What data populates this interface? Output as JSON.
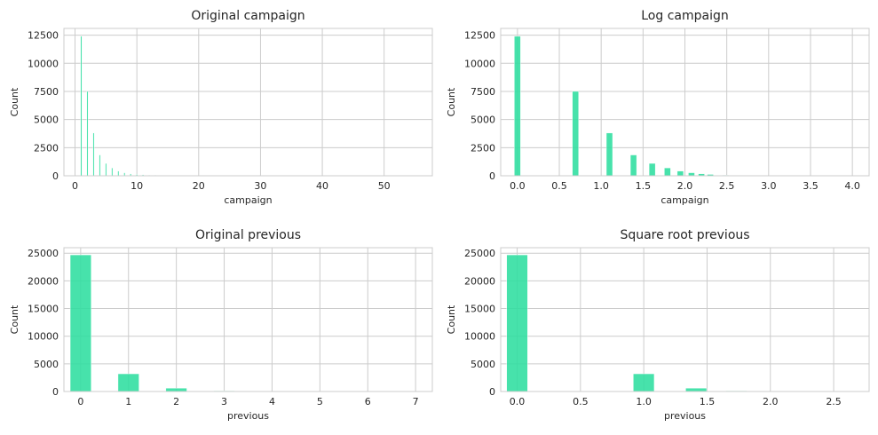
{
  "chart_data": [
    {
      "type": "bar",
      "title": "Original campaign",
      "xlabel": "campaign",
      "ylabel": "Count",
      "xlim": [
        -1.8,
        57.8
      ],
      "ylim": [
        0,
        13100
      ],
      "xticks": [
        0,
        10,
        20,
        30,
        40,
        50
      ],
      "yticks": [
        0,
        2500,
        5000,
        7500,
        10000,
        12500
      ],
      "tick_labels_x": [
        "0",
        "10",
        "20",
        "30",
        "40",
        "50"
      ],
      "tick_labels_y": [
        "0",
        "2500",
        "5000",
        "7500",
        "10000",
        "12500"
      ],
      "bar_width": 0.2,
      "grid": true,
      "color": "#2ede9f",
      "bars": [
        {
          "x": 1,
          "count": 12400
        },
        {
          "x": 2,
          "count": 7500
        },
        {
          "x": 3,
          "count": 3800
        },
        {
          "x": 4,
          "count": 1850
        },
        {
          "x": 5,
          "count": 1100
        },
        {
          "x": 6,
          "count": 700
        },
        {
          "x": 7,
          "count": 420
        },
        {
          "x": 8,
          "count": 270
        },
        {
          "x": 9,
          "count": 180
        },
        {
          "x": 10,
          "count": 120
        },
        {
          "x": 11,
          "count": 90
        },
        {
          "x": 12,
          "count": 60
        },
        {
          "x": 13,
          "count": 45
        },
        {
          "x": 14,
          "count": 30
        },
        {
          "x": 15,
          "count": 20
        },
        {
          "x": 17,
          "count": 10
        }
      ]
    },
    {
      "type": "bar",
      "title": "Log campaign",
      "xlabel": "campaign",
      "ylabel": "Count",
      "xlim": [
        -0.2,
        4.2
      ],
      "ylim": [
        0,
        13100
      ],
      "xticks": [
        0.0,
        0.5,
        1.0,
        1.5,
        2.0,
        2.5,
        3.0,
        3.5,
        4.0
      ],
      "yticks": [
        0,
        2500,
        5000,
        7500,
        10000,
        12500
      ],
      "tick_labels_x": [
        "0.0",
        "0.5",
        "1.0",
        "1.5",
        "2.0",
        "2.5",
        "3.0",
        "3.5",
        "4.0"
      ],
      "tick_labels_y": [
        "0",
        "2500",
        "5000",
        "7500",
        "10000",
        "12500"
      ],
      "bar_width": 0.074,
      "grid": true,
      "color": "#2ede9f",
      "bars": [
        {
          "x": 0.0,
          "count": 12400
        },
        {
          "x": 0.693,
          "count": 7500
        },
        {
          "x": 1.099,
          "count": 3800
        },
        {
          "x": 1.386,
          "count": 1850
        },
        {
          "x": 1.609,
          "count": 1100
        },
        {
          "x": 1.792,
          "count": 700
        },
        {
          "x": 1.946,
          "count": 420
        },
        {
          "x": 2.079,
          "count": 270
        },
        {
          "x": 2.197,
          "count": 180
        },
        {
          "x": 2.303,
          "count": 120
        },
        {
          "x": 2.485,
          "count": 60
        },
        {
          "x": 2.639,
          "count": 30
        },
        {
          "x": 2.833,
          "count": 15
        }
      ]
    },
    {
      "type": "bar",
      "title": "Original previous",
      "xlabel": "previous",
      "ylabel": "Count",
      "xlim": [
        -0.35,
        7.35
      ],
      "ylim": [
        0,
        26000
      ],
      "xticks": [
        0,
        1,
        2,
        3,
        4,
        5,
        6,
        7
      ],
      "yticks": [
        0,
        5000,
        10000,
        15000,
        20000,
        25000
      ],
      "tick_labels_x": [
        "0",
        "1",
        "2",
        "3",
        "4",
        "5",
        "6",
        "7"
      ],
      "tick_labels_y": [
        "0",
        "5000",
        "10000",
        "15000",
        "20000",
        "25000"
      ],
      "bar_width": 0.4375,
      "grid": true,
      "color": "#2ede9f",
      "bars": [
        {
          "x": 0,
          "count": 24700
        },
        {
          "x": 1,
          "count": 3200
        },
        {
          "x": 2,
          "count": 600
        },
        {
          "x": 3,
          "count": 130
        },
        {
          "x": 4,
          "count": 50
        },
        {
          "x": 5,
          "count": 20
        },
        {
          "x": 6,
          "count": 10
        },
        {
          "x": 7,
          "count": 5
        }
      ]
    },
    {
      "type": "bar",
      "title": "Square root previous",
      "xlabel": "previous",
      "ylabel": "Count",
      "xlim": [
        -0.13,
        2.78
      ],
      "ylim": [
        0,
        26000
      ],
      "xticks": [
        0.0,
        0.5,
        1.0,
        1.5,
        2.0,
        2.5
      ],
      "yticks": [
        0,
        5000,
        10000,
        15000,
        20000,
        25000
      ],
      "tick_labels_x": [
        "0.0",
        "0.5",
        "1.0",
        "1.5",
        "2.0",
        "2.5"
      ],
      "tick_labels_y": [
        "0",
        "5000",
        "10000",
        "15000",
        "20000",
        "25000"
      ],
      "bar_width": 0.165,
      "grid": true,
      "color": "#2ede9f",
      "bars": [
        {
          "x": 0.0,
          "count": 24700
        },
        {
          "x": 1.0,
          "count": 3200
        },
        {
          "x": 1.414,
          "count": 600
        },
        {
          "x": 1.732,
          "count": 130
        },
        {
          "x": 2.0,
          "count": 50
        },
        {
          "x": 2.236,
          "count": 20
        },
        {
          "x": 2.449,
          "count": 10
        },
        {
          "x": 2.646,
          "count": 5
        }
      ]
    }
  ]
}
